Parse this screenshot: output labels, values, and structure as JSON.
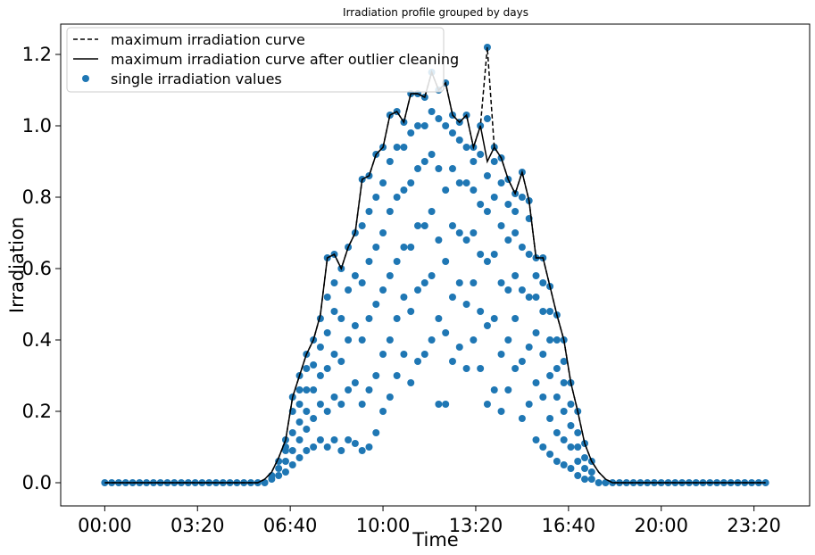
{
  "chart_data": {
    "type": "scatter",
    "title": "Irradiation profile grouped by days",
    "xlabel": "Time",
    "ylabel": "Irradiation",
    "x_unit": "minutes of day",
    "xlim": [
      -95,
      1520
    ],
    "ylim": [
      -0.065,
      1.285
    ],
    "x_ticks": [
      {
        "value": 0,
        "label": "00:00"
      },
      {
        "value": 200,
        "label": "03:20"
      },
      {
        "value": 400,
        "label": "06:40"
      },
      {
        "value": 600,
        "label": "10:00"
      },
      {
        "value": 800,
        "label": "13:20"
      },
      {
        "value": 1000,
        "label": "16:40"
      },
      {
        "value": 1200,
        "label": "20:00"
      },
      {
        "value": 1400,
        "label": "23:20"
      }
    ],
    "y_ticks": [
      {
        "value": 0.0,
        "label": "0.0"
      },
      {
        "value": 0.2,
        "label": "0.2"
      },
      {
        "value": 0.4,
        "label": "0.4"
      },
      {
        "value": 0.6,
        "label": "0.6"
      },
      {
        "value": 0.8,
        "label": "0.8"
      },
      {
        "value": 1.0,
        "label": "1.0"
      },
      {
        "value": 1.2,
        "label": "1.2"
      }
    ],
    "grid": false,
    "legend_position": "top-left",
    "series": [
      {
        "name": "maximum irradiation curve",
        "style": "dashed",
        "color": "#000000",
        "x": [
          0,
          15,
          30,
          45,
          60,
          75,
          90,
          105,
          120,
          135,
          150,
          165,
          180,
          195,
          210,
          225,
          240,
          255,
          270,
          285,
          300,
          315,
          330,
          345,
          360,
          375,
          390,
          405,
          420,
          435,
          450,
          465,
          480,
          495,
          510,
          525,
          540,
          555,
          570,
          585,
          600,
          615,
          630,
          645,
          660,
          675,
          690,
          705,
          720,
          735,
          750,
          765,
          780,
          795,
          810,
          825,
          840,
          855,
          870,
          885,
          900,
          915,
          930,
          945,
          960,
          975,
          990,
          1005,
          1020,
          1035,
          1050,
          1065,
          1080,
          1095,
          1110,
          1125,
          1140,
          1155,
          1170,
          1185,
          1200,
          1215,
          1230,
          1245,
          1260,
          1275,
          1290,
          1305,
          1320,
          1335,
          1350,
          1365,
          1380,
          1395,
          1410,
          1425
        ],
        "y": [
          0,
          0,
          0,
          0,
          0,
          0,
          0,
          0,
          0,
          0,
          0,
          0,
          0,
          0,
          0,
          0,
          0,
          0,
          0,
          0,
          0,
          0,
          0,
          0.01,
          0.03,
          0.07,
          0.12,
          0.24,
          0.3,
          0.36,
          0.4,
          0.47,
          0.63,
          0.64,
          0.6,
          0.66,
          0.7,
          0.85,
          0.86,
          0.92,
          0.94,
          1.03,
          1.04,
          1.01,
          1.09,
          1.09,
          1.08,
          1.15,
          1.1,
          1.12,
          1.03,
          1.01,
          1.03,
          0.94,
          1.0,
          1.22,
          0.94,
          0.91,
          0.85,
          0.81,
          0.87,
          0.79,
          0.63,
          0.63,
          0.55,
          0.47,
          0.4,
          0.28,
          0.2,
          0.11,
          0.06,
          0.03,
          0.01,
          0,
          0,
          0,
          0,
          0,
          0,
          0,
          0,
          0,
          0,
          0,
          0,
          0,
          0,
          0,
          0,
          0,
          0,
          0,
          0,
          0,
          0,
          0
        ]
      },
      {
        "name": "maximum irradiation curve after outlier cleaning",
        "style": "solid",
        "color": "#000000",
        "x": [
          0,
          15,
          30,
          45,
          60,
          75,
          90,
          105,
          120,
          135,
          150,
          165,
          180,
          195,
          210,
          225,
          240,
          255,
          270,
          285,
          300,
          315,
          330,
          345,
          360,
          375,
          390,
          405,
          420,
          435,
          450,
          465,
          480,
          495,
          510,
          525,
          540,
          555,
          570,
          585,
          600,
          615,
          630,
          645,
          660,
          675,
          690,
          705,
          720,
          735,
          750,
          765,
          780,
          795,
          810,
          825,
          840,
          855,
          870,
          885,
          900,
          915,
          930,
          945,
          960,
          975,
          990,
          1005,
          1020,
          1035,
          1050,
          1065,
          1080,
          1095,
          1110,
          1125,
          1140,
          1155,
          1170,
          1185,
          1200,
          1215,
          1230,
          1245,
          1260,
          1275,
          1290,
          1305,
          1320,
          1335,
          1350,
          1365,
          1380,
          1395,
          1410,
          1425
        ],
        "y": [
          0,
          0,
          0,
          0,
          0,
          0,
          0,
          0,
          0,
          0,
          0,
          0,
          0,
          0,
          0,
          0,
          0,
          0,
          0,
          0,
          0,
          0,
          0,
          0.01,
          0.03,
          0.07,
          0.12,
          0.24,
          0.3,
          0.36,
          0.4,
          0.47,
          0.63,
          0.64,
          0.6,
          0.66,
          0.7,
          0.85,
          0.86,
          0.92,
          0.94,
          1.03,
          1.04,
          1.01,
          1.09,
          1.09,
          1.08,
          1.15,
          1.1,
          1.12,
          1.03,
          1.01,
          1.03,
          0.94,
          1.0,
          0.9,
          0.94,
          0.91,
          0.85,
          0.81,
          0.87,
          0.79,
          0.63,
          0.63,
          0.55,
          0.47,
          0.4,
          0.28,
          0.2,
          0.11,
          0.06,
          0.03,
          0.01,
          0,
          0,
          0,
          0,
          0,
          0,
          0,
          0,
          0,
          0,
          0,
          0,
          0,
          0,
          0,
          0,
          0,
          0,
          0,
          0,
          0,
          0,
          0
        ]
      },
      {
        "name": "single irradiation values",
        "style": "markers",
        "color": "#1f77b4",
        "x": [
          0,
          15,
          30,
          45,
          60,
          75,
          90,
          105,
          120,
          135,
          150,
          165,
          180,
          195,
          210,
          225,
          240,
          255,
          270,
          285,
          300,
          315,
          330,
          345,
          1065,
          1080,
          1095,
          1110,
          1125,
          1140,
          1155,
          1170,
          1185,
          1200,
          1215,
          1230,
          1245,
          1260,
          1275,
          1290,
          1305,
          1320,
          1335,
          1350,
          1365,
          1380,
          1395,
          1410,
          1425,
          360,
          360,
          375,
          375,
          375,
          390,
          390,
          390,
          390,
          390,
          405,
          405,
          405,
          405,
          405,
          420,
          420,
          420,
          420,
          420,
          420,
          435,
          435,
          435,
          435,
          435,
          435,
          450,
          450,
          450,
          450,
          450,
          465,
          465,
          465,
          465,
          465,
          480,
          480,
          480,
          480,
          480,
          480,
          495,
          495,
          495,
          495,
          495,
          495,
          510,
          510,
          510,
          510,
          510,
          525,
          525,
          525,
          525,
          525,
          540,
          540,
          540,
          540,
          540,
          555,
          555,
          555,
          555,
          555,
          555,
          570,
          570,
          570,
          570,
          570,
          570,
          585,
          585,
          585,
          585,
          585,
          585,
          600,
          600,
          600,
          600,
          600,
          600,
          615,
          615,
          615,
          615,
          615,
          615,
          630,
          630,
          630,
          630,
          630,
          630,
          645,
          645,
          645,
          645,
          645,
          645,
          660,
          660,
          660,
          660,
          660,
          660,
          675,
          675,
          675,
          675,
          675,
          675,
          690,
          690,
          690,
          690,
          690,
          690,
          705,
          705,
          705,
          705,
          705,
          705,
          720,
          720,
          720,
          720,
          720,
          720,
          735,
          735,
          735,
          735,
          735,
          735,
          750,
          750,
          750,
          750,
          750,
          750,
          765,
          765,
          765,
          765,
          765,
          765,
          780,
          780,
          780,
          780,
          780,
          780,
          795,
          795,
          795,
          795,
          795,
          795,
          810,
          810,
          810,
          810,
          810,
          810,
          825,
          825,
          825,
          825,
          825,
          825,
          825,
          840,
          840,
          840,
          840,
          840,
          840,
          855,
          855,
          855,
          855,
          855,
          855,
          870,
          870,
          870,
          870,
          870,
          870,
          885,
          885,
          885,
          885,
          885,
          885,
          900,
          900,
          900,
          900,
          900,
          900,
          915,
          915,
          915,
          915,
          915,
          915,
          930,
          930,
          930,
          930,
          930,
          930,
          945,
          945,
          945,
          945,
          945,
          945,
          960,
          960,
          960,
          960,
          960,
          960,
          975,
          975,
          975,
          975,
          975,
          975,
          990,
          990,
          990,
          990,
          990,
          990,
          1005,
          1005,
          1005,
          1005,
          1005,
          1020,
          1020,
          1020,
          1020,
          1020,
          1035,
          1035,
          1035,
          1035,
          1050,
          1050,
          1050
        ],
        "y": [
          0,
          0,
          0,
          0,
          0,
          0,
          0,
          0,
          0,
          0,
          0,
          0,
          0,
          0,
          0,
          0,
          0,
          0,
          0,
          0,
          0,
          0,
          0,
          0,
          0,
          0,
          0,
          0,
          0,
          0,
          0,
          0,
          0,
          0,
          0,
          0,
          0,
          0,
          0,
          0,
          0,
          0,
          0,
          0,
          0,
          0,
          0,
          0,
          0,
          0.01,
          0.02,
          0.02,
          0.04,
          0.06,
          0.03,
          0.06,
          0.09,
          0.1,
          0.12,
          0.05,
          0.09,
          0.14,
          0.2,
          0.24,
          0.07,
          0.12,
          0.17,
          0.22,
          0.26,
          0.3,
          0.09,
          0.15,
          0.2,
          0.26,
          0.32,
          0.36,
          0.1,
          0.18,
          0.26,
          0.33,
          0.4,
          0.12,
          0.22,
          0.3,
          0.38,
          0.46,
          0.1,
          0.2,
          0.32,
          0.42,
          0.52,
          0.63,
          0.12,
          0.24,
          0.36,
          0.48,
          0.56,
          0.64,
          0.09,
          0.22,
          0.34,
          0.46,
          0.6,
          0.12,
          0.26,
          0.4,
          0.54,
          0.66,
          0.11,
          0.28,
          0.44,
          0.58,
          0.7,
          0.09,
          0.22,
          0.4,
          0.56,
          0.72,
          0.85,
          0.1,
          0.26,
          0.46,
          0.62,
          0.76,
          0.86,
          0.14,
          0.3,
          0.5,
          0.66,
          0.8,
          0.92,
          0.2,
          0.36,
          0.54,
          0.7,
          0.84,
          0.94,
          0.24,
          0.4,
          0.58,
          0.76,
          0.9,
          1.03,
          0.3,
          0.46,
          0.62,
          0.8,
          0.94,
          1.04,
          0.36,
          0.52,
          0.66,
          0.82,
          0.94,
          1.01,
          0.28,
          0.48,
          0.66,
          0.84,
          0.98,
          1.09,
          0.34,
          0.54,
          0.72,
          0.88,
          1.0,
          1.09,
          0.36,
          0.56,
          0.72,
          0.9,
          1.0,
          1.08,
          0.4,
          0.58,
          0.76,
          0.92,
          1.04,
          1.15,
          0.22,
          0.46,
          0.68,
          0.88,
          1.02,
          1.1,
          0.22,
          0.42,
          0.62,
          0.82,
          1.0,
          1.12,
          0.34,
          0.52,
          0.72,
          0.88,
          0.98,
          1.03,
          0.38,
          0.56,
          0.7,
          0.84,
          0.96,
          1.01,
          0.32,
          0.5,
          0.68,
          0.84,
          0.94,
          1.03,
          0.4,
          0.56,
          0.7,
          0.82,
          0.9,
          0.94,
          0.32,
          0.48,
          0.64,
          0.78,
          0.92,
          1.0,
          0.22,
          0.44,
          0.62,
          0.76,
          0.86,
          1.02,
          1.22,
          0.26,
          0.46,
          0.64,
          0.8,
          0.9,
          0.94,
          0.2,
          0.36,
          0.56,
          0.72,
          0.84,
          0.91,
          0.26,
          0.4,
          0.54,
          0.68,
          0.78,
          0.85,
          0.32,
          0.46,
          0.58,
          0.7,
          0.76,
          0.81,
          0.18,
          0.34,
          0.54,
          0.66,
          0.8,
          0.87,
          0.22,
          0.38,
          0.52,
          0.64,
          0.74,
          0.79,
          0.12,
          0.28,
          0.42,
          0.52,
          0.58,
          0.63,
          0.1,
          0.24,
          0.36,
          0.48,
          0.56,
          0.63,
          0.08,
          0.18,
          0.3,
          0.4,
          0.48,
          0.55,
          0.06,
          0.14,
          0.24,
          0.32,
          0.4,
          0.47,
          0.05,
          0.12,
          0.2,
          0.28,
          0.34,
          0.4,
          0.04,
          0.1,
          0.16,
          0.22,
          0.28,
          0.02,
          0.06,
          0.1,
          0.14,
          0.2,
          0.01,
          0.04,
          0.07,
          0.11,
          0.01,
          0.03,
          0.06
        ]
      }
    ]
  }
}
